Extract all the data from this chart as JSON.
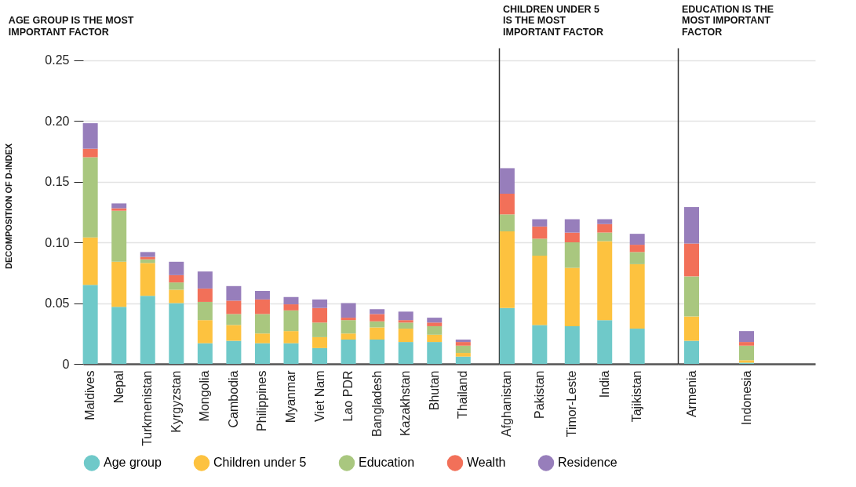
{
  "chart_data": [
    {
      "type": "bar",
      "stacked": true,
      "title": "AGE GROUP IS THE MOST IMPORTANT FACTOR",
      "ylabel": "DECOMPOSITION OF D-INDEX",
      "categories": [
        "Maldives",
        "Nepal",
        "Turkmenistan",
        "Kyrgyzstan",
        "Mongolia",
        "Cambodia",
        "Philippines",
        "Myanmar",
        "Viet Nam",
        "Lao PDR",
        "Bangladesh",
        "Kazakhstan",
        "Bhutan",
        "Thailand"
      ],
      "series": [
        {
          "name": "Age group",
          "color": "#6fc9c9",
          "values": [
            0.065,
            0.047,
            0.056,
            0.05,
            0.017,
            0.019,
            0.017,
            0.017,
            0.013,
            0.02,
            0.02,
            0.018,
            0.018,
            0.006
          ]
        },
        {
          "name": "Children under 5",
          "color": "#fdc23f",
          "values": [
            0.039,
            0.037,
            0.027,
            0.011,
            0.019,
            0.013,
            0.008,
            0.01,
            0.009,
            0.005,
            0.01,
            0.011,
            0.006,
            0.003
          ]
        },
        {
          "name": "Education",
          "color": "#a9c77f",
          "values": [
            0.066,
            0.042,
            0.003,
            0.006,
            0.015,
            0.009,
            0.016,
            0.017,
            0.012,
            0.011,
            0.005,
            0.005,
            0.007,
            0.006
          ]
        },
        {
          "name": "Wealth",
          "color": "#f27059",
          "values": [
            0.007,
            0.002,
            0.002,
            0.006,
            0.011,
            0.011,
            0.012,
            0.005,
            0.012,
            0.002,
            0.006,
            0.002,
            0.003,
            0.003
          ]
        },
        {
          "name": "Residence",
          "color": "#977ebb",
          "values": [
            0.021,
            0.004,
            0.004,
            0.011,
            0.014,
            0.012,
            0.007,
            0.006,
            0.007,
            0.012,
            0.004,
            0.007,
            0.004,
            0.002
          ]
        }
      ],
      "ylim": [
        0,
        0.26
      ],
      "yticks": [
        0,
        0.05,
        {
          "value": 0.1,
          "label": "0.10"
        },
        0.15,
        {
          "value": 0.2,
          "label": "0.20"
        },
        0.25
      ],
      "grid": "y",
      "legend": "bottom"
    },
    {
      "type": "bar",
      "stacked": true,
      "title": "CHILDREN UNDER 5 IS THE MOST IMPORTANT FACTOR",
      "categories": [
        "Afghanistan",
        "Pakistan",
        "Timor-Leste",
        "India",
        "Tajikistan"
      ],
      "series": [
        {
          "name": "Age group",
          "color": "#6fc9c9",
          "values": [
            0.046,
            0.032,
            0.031,
            0.036,
            0.029
          ]
        },
        {
          "name": "Children under 5",
          "color": "#fdc23f",
          "values": [
            0.063,
            0.057,
            0.048,
            0.065,
            0.053
          ]
        },
        {
          "name": "Education",
          "color": "#a9c77f",
          "values": [
            0.014,
            0.014,
            0.021,
            0.007,
            0.01
          ]
        },
        {
          "name": "Wealth",
          "color": "#f27059",
          "values": [
            0.017,
            0.01,
            0.008,
            0.007,
            0.006
          ]
        },
        {
          "name": "Residence",
          "color": "#977ebb",
          "values": [
            0.021,
            0.006,
            0.011,
            0.004,
            0.009
          ]
        }
      ],
      "ylim": [
        0,
        0.26
      ],
      "yticks": [
        0,
        0.05,
        0.1,
        0.15,
        0.2,
        0.25
      ],
      "grid": "y",
      "legend": "bottom",
      "tick_labels": "x"
    },
    {
      "type": "bar",
      "stacked": true,
      "title": "EDUCATION IS THE MOST IMPORTANT FACTOR",
      "categories": [
        "Armenia",
        "Indonesia"
      ],
      "series": [
        {
          "name": "Age group",
          "color": "#6fc9c9",
          "values": [
            0.019,
            0.001
          ]
        },
        {
          "name": "Children under 5",
          "color": "#fdc23f",
          "values": [
            0.02,
            0.002
          ]
        },
        {
          "name": "Education",
          "color": "#a9c77f",
          "values": [
            0.033,
            0.012
          ]
        },
        {
          "name": "Wealth",
          "color": "#f27059",
          "values": [
            0.027,
            0.003
          ]
        },
        {
          "name": "Residence",
          "color": "#977ebb",
          "values": [
            0.03,
            0.009
          ]
        }
      ],
      "ylim": [
        0,
        0.26
      ],
      "yticks": [
        0,
        0.05,
        0.1,
        0.15,
        0.2,
        0.25
      ],
      "grid": "y",
      "legend": "bottom",
      "tick_labels": "x"
    }
  ]
}
